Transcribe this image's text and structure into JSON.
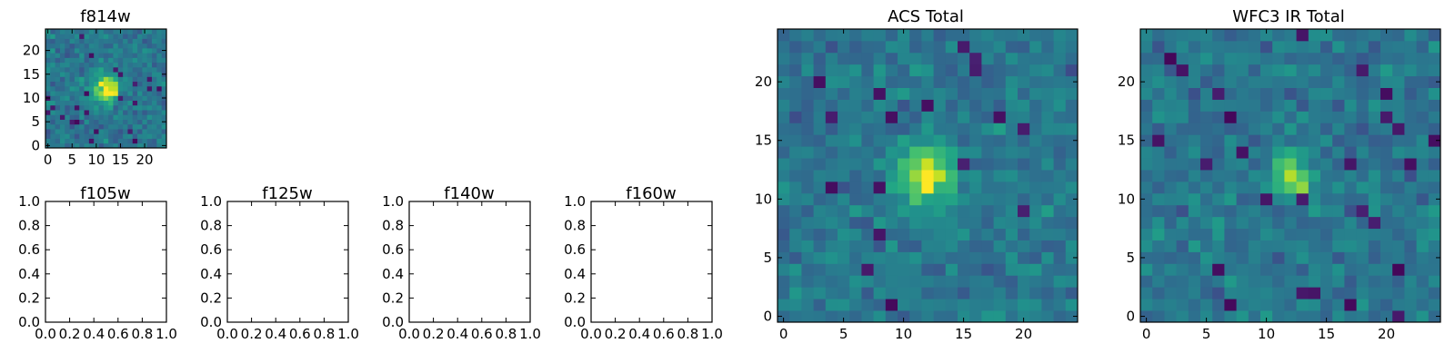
{
  "chart_data": [
    {
      "id": "f814w",
      "type": "heatmap",
      "title": "f814w",
      "grid_size": 25,
      "xlim": [
        -0.5,
        24.5
      ],
      "ylim": [
        -0.5,
        24.5
      ],
      "xticks": [
        0,
        5,
        10,
        15,
        20
      ],
      "yticks": [
        0,
        5,
        10,
        15,
        20
      ],
      "colormap": "viridis",
      "blob_center": [
        12,
        12
      ],
      "blob_sigma": 2.2,
      "seed": 11
    },
    {
      "id": "f105w",
      "type": "empty",
      "title": "f105w",
      "xlim": [
        0.0,
        1.0
      ],
      "ylim": [
        0.0,
        1.0
      ],
      "xticks": [
        "0.0",
        "0.2",
        "0.4",
        "0.6",
        "0.8",
        "1.0"
      ],
      "yticks": [
        "0.0",
        "0.2",
        "0.4",
        "0.6",
        "0.8",
        "1.0"
      ]
    },
    {
      "id": "f125w",
      "type": "empty",
      "title": "f125w",
      "xlim": [
        0.0,
        1.0
      ],
      "ylim": [
        0.0,
        1.0
      ],
      "xticks": [
        "0.0",
        "0.2",
        "0.4",
        "0.6",
        "0.8",
        "1.0"
      ],
      "yticks": [
        "0.0",
        "0.2",
        "0.4",
        "0.6",
        "0.8",
        "1.0"
      ]
    },
    {
      "id": "f140w",
      "type": "empty",
      "title": "f140w",
      "xlim": [
        0.0,
        1.0
      ],
      "ylim": [
        0.0,
        1.0
      ],
      "xticks": [
        "0.0",
        "0.2",
        "0.4",
        "0.6",
        "0.8",
        "1.0"
      ],
      "yticks": [
        "0.0",
        "0.2",
        "0.4",
        "0.6",
        "0.8",
        "1.0"
      ]
    },
    {
      "id": "f160w",
      "type": "empty",
      "title": "f160w",
      "xlim": [
        0.0,
        1.0
      ],
      "ylim": [
        0.0,
        1.0
      ],
      "xticks": [
        "0.0",
        "0.2",
        "0.4",
        "0.6",
        "0.8",
        "1.0"
      ],
      "yticks": [
        "0.0",
        "0.2",
        "0.4",
        "0.6",
        "0.8",
        "1.0"
      ]
    },
    {
      "id": "acs-total",
      "type": "heatmap",
      "title": "ACS Total",
      "grid_size": 25,
      "xlim": [
        -0.5,
        24.5
      ],
      "ylim": [
        -0.5,
        24.5
      ],
      "xticks": [
        0,
        5,
        10,
        15,
        20
      ],
      "yticks": [
        0,
        5,
        10,
        15,
        20
      ],
      "colormap": "viridis",
      "blob_center": [
        12,
        12
      ],
      "blob_sigma": 1.9,
      "seed": 7
    },
    {
      "id": "wfc3-ir-total",
      "type": "heatmap",
      "title": "WFC3 IR Total",
      "grid_size": 25,
      "xlim": [
        -0.5,
        24.5
      ],
      "ylim": [
        -0.5,
        24.5
      ],
      "xticks": [
        0,
        5,
        10,
        15,
        20
      ],
      "yticks": [
        0,
        5,
        10,
        15,
        20
      ],
      "colormap": "viridis",
      "blob_center": [
        12,
        12
      ],
      "blob_sigma": 1.2,
      "seed": 23
    }
  ]
}
